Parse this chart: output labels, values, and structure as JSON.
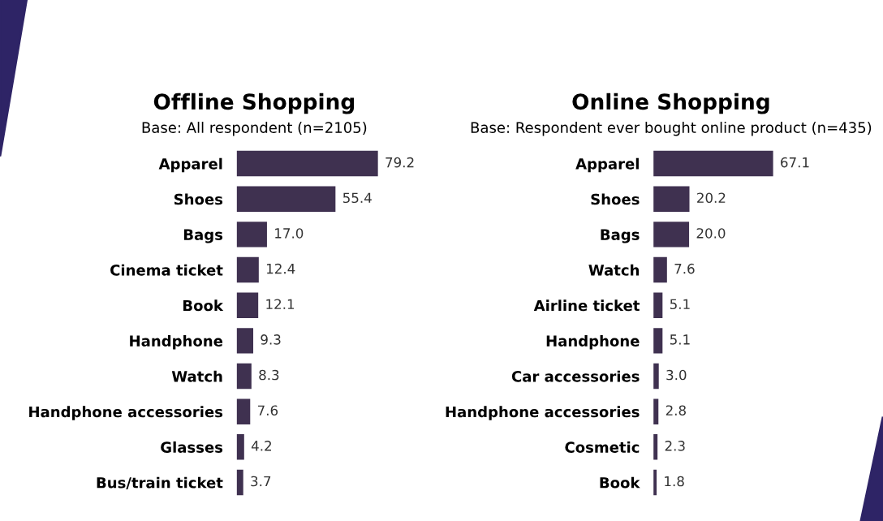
{
  "chart_data": [
    {
      "type": "bar",
      "orientation": "horizontal",
      "title": "Offline Shopping",
      "subtitle": "Base: All respondent (n=2105)",
      "categories": [
        "Apparel",
        "Shoes",
        "Bags",
        "Cinema ticket",
        "Book",
        "Handphone",
        "Watch",
        "Handphone accessories",
        "Glasses",
        "Bus/train ticket"
      ],
      "values": [
        79.2,
        55.4,
        17.0,
        12.4,
        12.1,
        9.3,
        8.3,
        7.6,
        4.2,
        3.7
      ],
      "value_labels": [
        "79.2",
        "55.4",
        "17.0",
        "12.4",
        "12.1",
        "9.3",
        "8.3",
        "7.6",
        "4.2",
        "3.7"
      ],
      "color": "#3f3150",
      "tick_labels": "y",
      "grid": false,
      "legend": false
    },
    {
      "type": "bar",
      "orientation": "horizontal",
      "title": "Online Shopping",
      "subtitle": "Base: Respondent ever bought online product (n=435)",
      "categories": [
        "Apparel",
        "Shoes",
        "Bags",
        "Watch",
        "Airline ticket",
        "Handphone",
        "Car accessories",
        "Handphone accessories",
        "Cosmetic",
        "Book"
      ],
      "values": [
        67.1,
        20.2,
        20.0,
        7.6,
        5.1,
        5.1,
        3.0,
        2.8,
        2.3,
        1.8
      ],
      "value_labels": [
        "67.1",
        "20.2",
        "20.0",
        "7.6",
        "5.1",
        "5.1",
        "3.0",
        "2.8",
        "2.3",
        "1.8"
      ],
      "color": "#3f3150",
      "tick_labels": "y",
      "grid": false,
      "legend": false
    }
  ]
}
